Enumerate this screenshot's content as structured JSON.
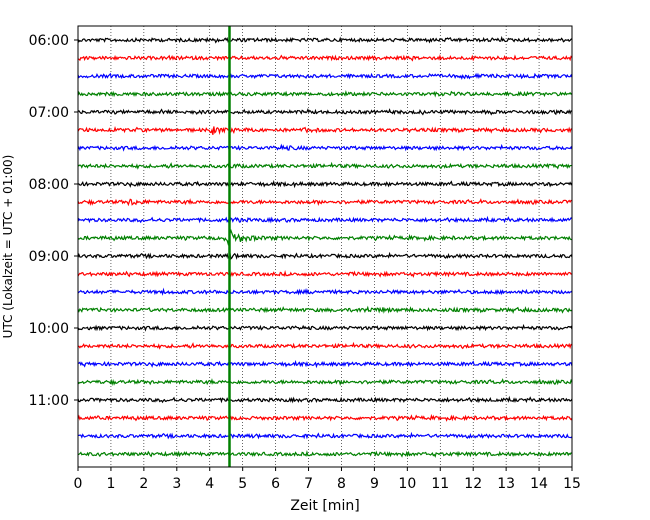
{
  "chart_data": {
    "type": "line",
    "title": "",
    "xlabel": "Zeit  [min]",
    "ylabel": "UTC (Lokalzeit = UTC + 01:00)",
    "xlim": [
      0,
      15
    ],
    "x_ticks": [
      0,
      1,
      2,
      3,
      4,
      5,
      6,
      7,
      8,
      9,
      10,
      11,
      12,
      13,
      14,
      15
    ],
    "y_tick_labels": [
      "06:00",
      "07:00",
      "08:00",
      "09:00",
      "10:00",
      "11:00"
    ],
    "y_tick_trace_index": [
      0,
      4,
      8,
      12,
      16,
      20
    ],
    "trace_interval_min": 15,
    "trace_start_time": "06:00",
    "trace_count": 24,
    "trace_colors": [
      "#000000",
      "#ff0000",
      "#0000ff",
      "#008000"
    ],
    "grid": {
      "vertical_dotted": true
    },
    "marker": {
      "x_min": 4.6,
      "color": "#008000"
    },
    "events": [
      {
        "trace": 5,
        "x_min": 4.1,
        "width_min": 0.6,
        "amplitude": 2.6
      },
      {
        "trace": 5,
        "x_min": 6.9,
        "width_min": 0.5,
        "amplitude": 1.3
      },
      {
        "trace": 6,
        "x_min": 6.2,
        "width_min": 0.6,
        "amplitude": 1.3
      },
      {
        "trace": 7,
        "x_min": 4.6,
        "width_min": 0.4,
        "amplitude": 1.5
      },
      {
        "trace": 9,
        "x_min": 1.6,
        "width_min": 0.5,
        "amplitude": 2.4
      },
      {
        "trace": 10,
        "x_min": 4.6,
        "width_min": 0.5,
        "amplitude": 2.0
      },
      {
        "trace": 11,
        "x_min": 4.6,
        "width_min": 0.7,
        "amplitude": 7.0
      },
      {
        "trace": 12,
        "x_min": 4.6,
        "width_min": 0.3,
        "amplitude": 2.0
      },
      {
        "trace": 15,
        "x_min": 8.7,
        "width_min": 0.8,
        "amplitude": 1.8
      },
      {
        "trace": 15,
        "x_min": 13.3,
        "width_min": 0.4,
        "amplitude": 1.0
      },
      {
        "trace": 2,
        "x_min": 11.7,
        "width_min": 0.6,
        "amplitude": 1.3
      }
    ]
  }
}
